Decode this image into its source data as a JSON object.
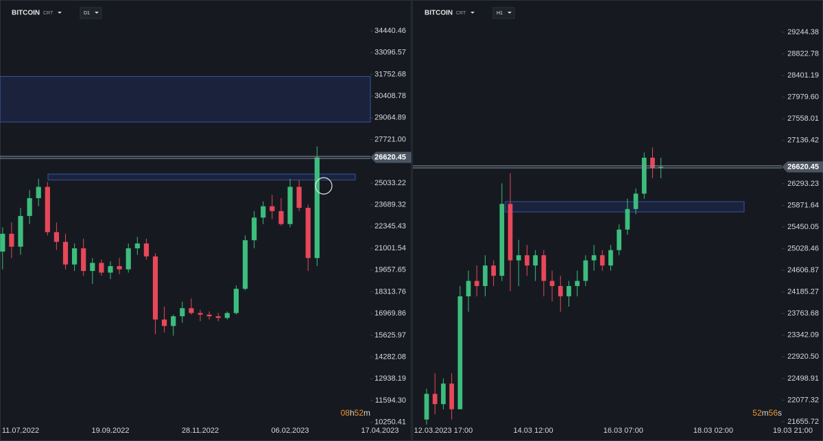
{
  "chart_data": [
    {
      "type": "candlestick",
      "title": "BITCOIN",
      "source": "CRT",
      "timeframe": "D1",
      "x": [
        0,
        1,
        2,
        3,
        4,
        5,
        6,
        7,
        8,
        9,
        10,
        11,
        12,
        13,
        14,
        15,
        16,
        17,
        18,
        19,
        20,
        21,
        22,
        23,
        24,
        25,
        26,
        27,
        28,
        29,
        30,
        31,
        32,
        33,
        34,
        35
      ],
      "open": [
        20800,
        21900,
        21100,
        23000,
        24100,
        24800,
        22000,
        21400,
        20000,
        21000,
        19600,
        20100,
        19500,
        19900,
        19700,
        21000,
        21300,
        20500,
        16600,
        16200,
        16800,
        17300,
        17000,
        16900,
        16800,
        16700,
        17000,
        18500,
        21500,
        22900,
        23600,
        23300,
        22500,
        24800,
        23500,
        20400
      ],
      "high": [
        22300,
        22600,
        23500,
        24600,
        25300,
        25100,
        22600,
        21900,
        21300,
        21600,
        20400,
        20300,
        20200,
        20400,
        21300,
        21700,
        21600,
        20700,
        17400,
        16900,
        17700,
        17900,
        17200,
        17100,
        17000,
        17100,
        18700,
        21800,
        23300,
        23900,
        24300,
        24100,
        25300,
        25200,
        23700,
        27300
      ],
      "low": [
        19700,
        20400,
        20600,
        22500,
        23600,
        21800,
        20900,
        19700,
        19600,
        19300,
        18800,
        19300,
        19100,
        19400,
        19500,
        20600,
        20300,
        15700,
        15800,
        15600,
        16400,
        16900,
        16500,
        16600,
        16500,
        16600,
        16900,
        18400,
        21000,
        22500,
        22800,
        22400,
        22300,
        23300,
        19600,
        19900
      ],
      "close": [
        21900,
        21100,
        23000,
        24100,
        24800,
        22000,
        21400,
        20000,
        21000,
        19600,
        20100,
        19500,
        19900,
        19700,
        21000,
        21300,
        20500,
        16600,
        16200,
        16800,
        17300,
        17000,
        16900,
        16800,
        16700,
        17000,
        18500,
        21500,
        22900,
        23600,
        23300,
        22500,
        24800,
        23500,
        20400,
        26620.45
      ],
      "up_color": "#3dbd7d",
      "down_color": "#e8475a",
      "xlim": [
        -0.29,
        40.93
      ],
      "xticks": [
        {
          "value": 2,
          "label": "11.07.2022"
        },
        {
          "value": 12,
          "label": "19.09.2022"
        },
        {
          "value": 22,
          "label": "28.11.2022"
        },
        {
          "value": 32,
          "label": "06.02.2023"
        },
        {
          "value": 42,
          "label": "17.04.2023"
        }
      ],
      "ylim": [
        9727,
        36010
      ],
      "yticks": [
        34440.46,
        33096.57,
        31752.68,
        30408.78,
        29064.89,
        {
          "value": 27721,
          "label": "27721.00"
        },
        25033.22,
        23689.32,
        22345.43,
        21001.54,
        19657.65,
        18313.76,
        16969.86,
        15625.97,
        14282.08,
        12938.19,
        {
          "value": 11594.3,
          "label": "11594.30"
        },
        10250.41
      ],
      "zones": [
        {
          "low": 28806,
          "high": 31623
        },
        {
          "low": 25225,
          "high": 25587
        }
      ],
      "last_price": 26620.45,
      "countdown": [
        {
          "value": "08",
          "unit": "h"
        },
        {
          "value": "52",
          "unit": "m"
        }
      ]
    },
    {
      "type": "candlestick",
      "title": "BITCOIN",
      "source": "CRT",
      "timeframe": "H1",
      "x": [
        0,
        4,
        8,
        12,
        16,
        20,
        24,
        28,
        32,
        36,
        40,
        44,
        48,
        52,
        56,
        60,
        64,
        68,
        72,
        76,
        80,
        84,
        88,
        92,
        96,
        100,
        104,
        108,
        112
      ],
      "open": [
        21700,
        22200,
        22000,
        22400,
        21900,
        24100,
        24400,
        24300,
        24700,
        24500,
        25900,
        24800,
        24900,
        24700,
        24900,
        24400,
        24300,
        24100,
        24300,
        24400,
        24800,
        24900,
        24700,
        25000,
        25400,
        25800,
        26100,
        26800,
        26600
      ],
      "high": [
        22300,
        22600,
        22500,
        22600,
        24300,
        24600,
        24700,
        24900,
        24800,
        26300,
        26500,
        25200,
        25100,
        25000,
        25000,
        24600,
        24500,
        24400,
        24600,
        24900,
        25100,
        25000,
        25100,
        25500,
        26000,
        26200,
        26900,
        27000,
        26800
      ],
      "low": [
        21600,
        21800,
        21900,
        21700,
        21900,
        23800,
        24100,
        24100,
        24300,
        24400,
        24200,
        24300,
        24500,
        24400,
        24100,
        24000,
        23800,
        23900,
        24100,
        24300,
        24600,
        24600,
        24600,
        24900,
        25300,
        25700,
        26000,
        26400,
        26400
      ],
      "close": [
        22200,
        22000,
        22400,
        21900,
        24100,
        24400,
        24300,
        24700,
        24500,
        25900,
        24800,
        24900,
        24700,
        24900,
        24400,
        24300,
        24100,
        24300,
        24400,
        24800,
        24900,
        24700,
        25000,
        25400,
        25800,
        26100,
        26800,
        26600,
        26620.45
      ],
      "up_color": "#3dbd7d",
      "down_color": "#e8475a",
      "xlim": [
        -6.56,
        169.8
      ],
      "xticks": [
        {
          "value": 8,
          "label": "12.03.2023  17:00"
        },
        {
          "value": 51,
          "label": "14.03  12:00"
        },
        {
          "value": 94,
          "label": "16.03  07:00"
        },
        {
          "value": 137,
          "label": "18.03  02:00"
        },
        {
          "value": 180,
          "label": "19.03  21:00"
        }
      ],
      "ylim": [
        21482,
        29765
      ],
      "yticks": [
        29244.38,
        28822.78,
        28401.19,
        {
          "value": 27979.6,
          "label": "27979.60"
        },
        27558.01,
        27136.42,
        26293.23,
        25871.64,
        25450.05,
        25028.46,
        24606.87,
        24185.27,
        23763.68,
        23342.09,
        {
          "value": 22920.5,
          "label": "22920.50"
        },
        22498.91,
        22077.32,
        21655.72
      ],
      "zones": [
        {
          "low": 25744,
          "high": 25944
        }
      ],
      "last_price": 26620.45,
      "countdown": [
        {
          "value": "52",
          "unit": "m"
        },
        {
          "value": "56",
          "unit": "s"
        }
      ]
    }
  ]
}
